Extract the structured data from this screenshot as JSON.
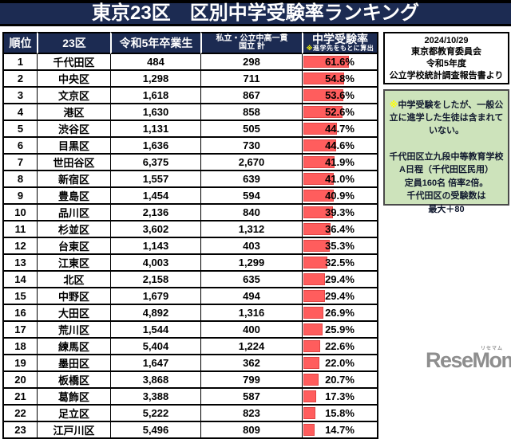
{
  "title_bar": {
    "title": "東京23区　区別中学受験率ランキング"
  },
  "chart_data": {
    "type": "table",
    "title": "東京23区　区別中学受験率ランキング",
    "bar_column": "中学受験率",
    "bar_range": [
      0,
      100
    ],
    "headers": {
      "rank": "順位",
      "ward": "23区",
      "graduates": "令和5年卒業生",
      "total_line1": "私立・公立中高一貫",
      "total_line2": "国立 計",
      "rate": "中学受験率",
      "rate_note_marker": "※",
      "rate_note": "進学先をもとに算出"
    },
    "rows": [
      {
        "rank": "1",
        "ward": "千代田区",
        "graduates": "484",
        "total": "298",
        "rate": "61.6%",
        "rate_value": 61.6
      },
      {
        "rank": "2",
        "ward": "中央区",
        "graduates": "1,298",
        "total": "711",
        "rate": "54.8%",
        "rate_value": 54.8
      },
      {
        "rank": "3",
        "ward": "文京区",
        "graduates": "1,618",
        "total": "867",
        "rate": "53.6%",
        "rate_value": 53.6
      },
      {
        "rank": "4",
        "ward": "港区",
        "graduates": "1,630",
        "total": "858",
        "rate": "52.6%",
        "rate_value": 52.6
      },
      {
        "rank": "5",
        "ward": "渋谷区",
        "graduates": "1,131",
        "total": "505",
        "rate": "44.7%",
        "rate_value": 44.7
      },
      {
        "rank": "6",
        "ward": "目黒区",
        "graduates": "1,636",
        "total": "730",
        "rate": "44.6%",
        "rate_value": 44.6
      },
      {
        "rank": "7",
        "ward": "世田谷区",
        "graduates": "6,375",
        "total": "2,670",
        "rate": "41.9%",
        "rate_value": 41.9
      },
      {
        "rank": "8",
        "ward": "新宿区",
        "graduates": "1,557",
        "total": "639",
        "rate": "41.0%",
        "rate_value": 41.0
      },
      {
        "rank": "9",
        "ward": "豊島区",
        "graduates": "1,454",
        "total": "594",
        "rate": "40.9%",
        "rate_value": 40.9
      },
      {
        "rank": "10",
        "ward": "品川区",
        "graduates": "2,136",
        "total": "840",
        "rate": "39.3%",
        "rate_value": 39.3
      },
      {
        "rank": "11",
        "ward": "杉並区",
        "graduates": "3,602",
        "total": "1,312",
        "rate": "36.4%",
        "rate_value": 36.4
      },
      {
        "rank": "12",
        "ward": "台東区",
        "graduates": "1,143",
        "total": "403",
        "rate": "35.3%",
        "rate_value": 35.3
      },
      {
        "rank": "13",
        "ward": "江東区",
        "graduates": "4,003",
        "total": "1,299",
        "rate": "32.5%",
        "rate_value": 32.5
      },
      {
        "rank": "14",
        "ward": "北区",
        "graduates": "2,158",
        "total": "635",
        "rate": "29.4%",
        "rate_value": 29.4
      },
      {
        "rank": "15",
        "ward": "中野区",
        "graduates": "1,679",
        "total": "494",
        "rate": "29.4%",
        "rate_value": 29.4
      },
      {
        "rank": "16",
        "ward": "大田区",
        "graduates": "4,892",
        "total": "1,316",
        "rate": "26.9%",
        "rate_value": 26.9
      },
      {
        "rank": "17",
        "ward": "荒川区",
        "graduates": "1,544",
        "total": "400",
        "rate": "25.9%",
        "rate_value": 25.9
      },
      {
        "rank": "18",
        "ward": "練馬区",
        "graduates": "5,404",
        "total": "1,224",
        "rate": "22.6%",
        "rate_value": 22.6
      },
      {
        "rank": "19",
        "ward": "墨田区",
        "graduates": "1,647",
        "total": "362",
        "rate": "22.0%",
        "rate_value": 22.0
      },
      {
        "rank": "20",
        "ward": "板橋区",
        "graduates": "3,868",
        "total": "799",
        "rate": "20.7%",
        "rate_value": 20.7
      },
      {
        "rank": "21",
        "ward": "葛飾区",
        "graduates": "3,388",
        "total": "587",
        "rate": "17.3%",
        "rate_value": 17.3
      },
      {
        "rank": "22",
        "ward": "足立区",
        "graduates": "5,222",
        "total": "823",
        "rate": "15.8%",
        "rate_value": 15.8
      },
      {
        "rank": "23",
        "ward": "江戸川区",
        "graduates": "5,496",
        "total": "809",
        "rate": "14.7%",
        "rate_value": 14.7
      }
    ]
  },
  "source_box": {
    "lines": [
      "2024/10/29",
      "東京都教育委員会",
      "令和5年度",
      "公立学校統計調査報告書より"
    ]
  },
  "note_box": {
    "note1_marker": "※",
    "note1": "中学受験をしたが、一般公立に進学した生徒は含まれていない。",
    "note2_lines": [
      "千代田区立九段中等教育学校",
      "A日程（千代田区民用）",
      "定員160名 倍率2倍。",
      "千代田区の受験数は",
      "最大＋80"
    ]
  },
  "logo": {
    "text": "ReseMom",
    "ruby": "リセマム",
    "dot": "."
  },
  "colors": {
    "navy": "#1c2b52",
    "red_bar": "#ff5d5d",
    "red_bar_border": "#e04545",
    "green_box": "#cde3bb",
    "green_border": "#4a4a4a",
    "yellow": "#ffff00",
    "logo_gray": "#8e8e8e"
  }
}
